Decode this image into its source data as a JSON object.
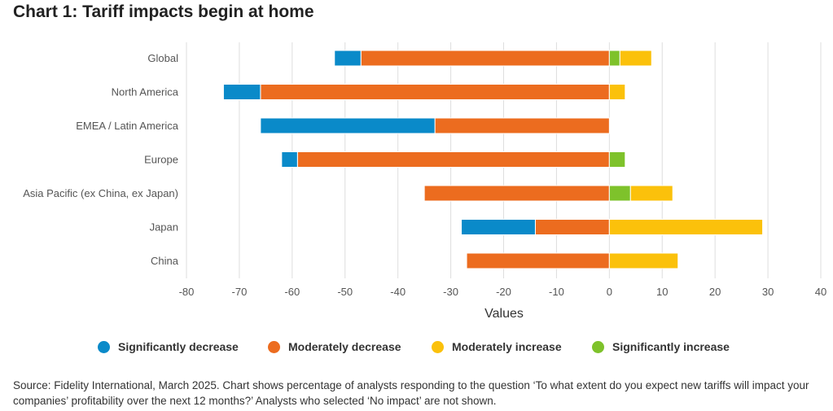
{
  "title": "Chart 1: Tariff impacts begin at home",
  "source": " Source: Fidelity International, March 2025. Chart shows percentage of analysts responding to the question ‘To what extent do you expect new tariffs will impact your companies’ profitability over the next 12 months?’ Analysts who selected ‘No impact’ are not shown.",
  "chart_data": {
    "type": "bar",
    "orientation": "horizontal",
    "stacked": "diverging",
    "title": "Chart 1: Tariff impacts begin at home",
    "xlabel": "Values",
    "ylabel": "",
    "xlim": [
      -80,
      40
    ],
    "xticks": [
      -80,
      -70,
      -60,
      -50,
      -40,
      -30,
      -20,
      -10,
      0,
      10,
      20,
      30,
      40
    ],
    "grid": "vertical",
    "legend_position": "bottom",
    "categories": [
      "Global",
      "North America",
      "EMEA / Latin America",
      "Europe",
      "Asia Pacific (ex China, ex Japan)",
      "Japan",
      "China"
    ],
    "series": [
      {
        "name": "Significantly decrease",
        "color": "#0a8ac9",
        "values": [
          -5,
          -7,
          -33,
          -3,
          0,
          -14,
          0
        ]
      },
      {
        "name": "Moderately decrease",
        "color": "#ec6c1f",
        "values": [
          -47,
          -66,
          -33,
          -59,
          -35,
          -14,
          -27
        ]
      },
      {
        "name": "Moderately increase",
        "color": "#fbc10b",
        "values": [
          6,
          3,
          0,
          0,
          8,
          29,
          13
        ]
      },
      {
        "name": "Significantly increase",
        "color": "#7ec22b",
        "values": [
          2,
          0,
          0,
          3,
          4,
          0,
          0
        ]
      }
    ]
  }
}
